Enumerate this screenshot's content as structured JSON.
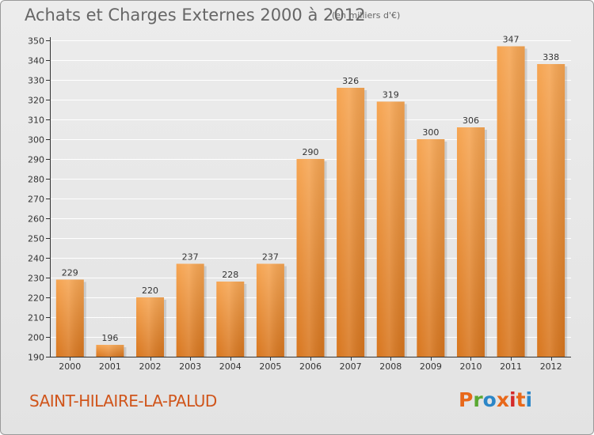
{
  "header": {
    "title": "Achats et Charges Externes 2000 à 2012",
    "unit": "(en milliers d'€)"
  },
  "footer": {
    "place": "SAINT-HILAIRE-LA-PALUD",
    "logo_text": "Proxiti",
    "logo_colors": [
      "#e8681a",
      "#5aa832",
      "#2b86c7",
      "#e8681a",
      "#d42a2a",
      "#e8681a",
      "#2b86c7"
    ]
  },
  "colors": {
    "bar_light": "#f6a552",
    "bar_dark": "#d8761e",
    "axis": "#333333",
    "grid": "#ffffff"
  },
  "chart_data": {
    "type": "bar",
    "title": "Achats et Charges Externes 2000 à 2012",
    "subtitle": "(en milliers d'€)",
    "categories": [
      "2000",
      "2001",
      "2002",
      "2003",
      "2004",
      "2005",
      "2006",
      "2007",
      "2008",
      "2009",
      "2010",
      "2011",
      "2012"
    ],
    "values": [
      229,
      196,
      220,
      237,
      228,
      237,
      290,
      326,
      319,
      300,
      306,
      347,
      338
    ],
    "ylim": [
      190,
      350
    ],
    "ytick_step": 10,
    "grid": true,
    "data_labels": true
  }
}
